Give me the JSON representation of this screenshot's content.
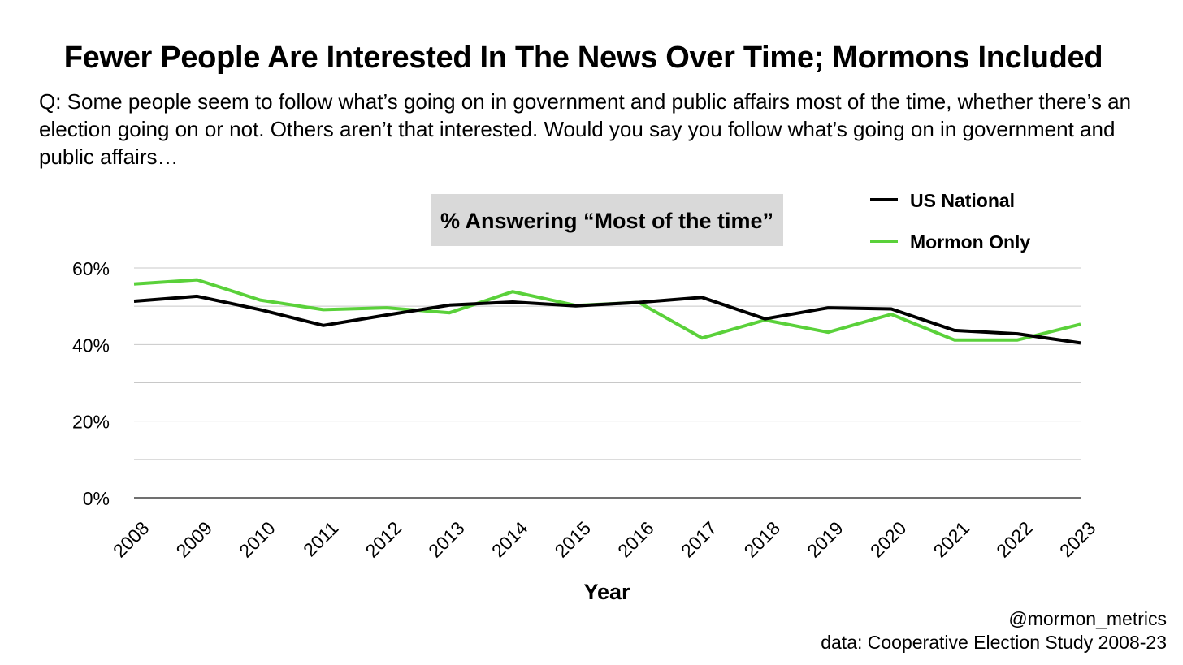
{
  "title": "Fewer People Are Interested In The News Over Time; Mormons Included",
  "question": "Q: Some people seem to follow what’s going on in government and public affairs most of the time, whether there’s an election going on or not. Others aren’t that interested. Would you say you follow what’s going on in government and public affairs…",
  "credit": {
    "handle": "@mormon_metrics",
    "source": "data: Cooperative Election Study 2008-23"
  },
  "chart_data": {
    "type": "line",
    "title": "% Answering “Most of the time”",
    "xlabel": "Year",
    "ylabel": "",
    "x": [
      "2008",
      "2009",
      "2010",
      "2011",
      "2012",
      "2013",
      "2014",
      "2015",
      "2016",
      "2017",
      "2018",
      "2019",
      "2020",
      "2021",
      "2022",
      "2023"
    ],
    "ylim": [
      0,
      60
    ],
    "yticks": [
      0,
      10,
      20,
      30,
      40,
      50,
      60
    ],
    "ytick_labels": [
      "0%",
      "20%",
      "40%",
      "60%"
    ],
    "legend_position": "top-right",
    "series": [
      {
        "name": "US National",
        "color": "#000000",
        "values": [
          51.3,
          52.6,
          49.1,
          45.0,
          47.7,
          50.3,
          51.1,
          50.1,
          51.0,
          52.3,
          46.7,
          49.6,
          49.3,
          43.7,
          42.8,
          40.4
        ]
      },
      {
        "name": "Mormon Only",
        "color": "#5ad13a",
        "values": [
          55.8,
          56.9,
          51.6,
          49.1,
          49.6,
          48.3,
          53.8,
          50.2,
          51.0,
          41.7,
          46.4,
          43.2,
          47.9,
          41.2,
          41.2,
          45.3
        ]
      }
    ]
  }
}
